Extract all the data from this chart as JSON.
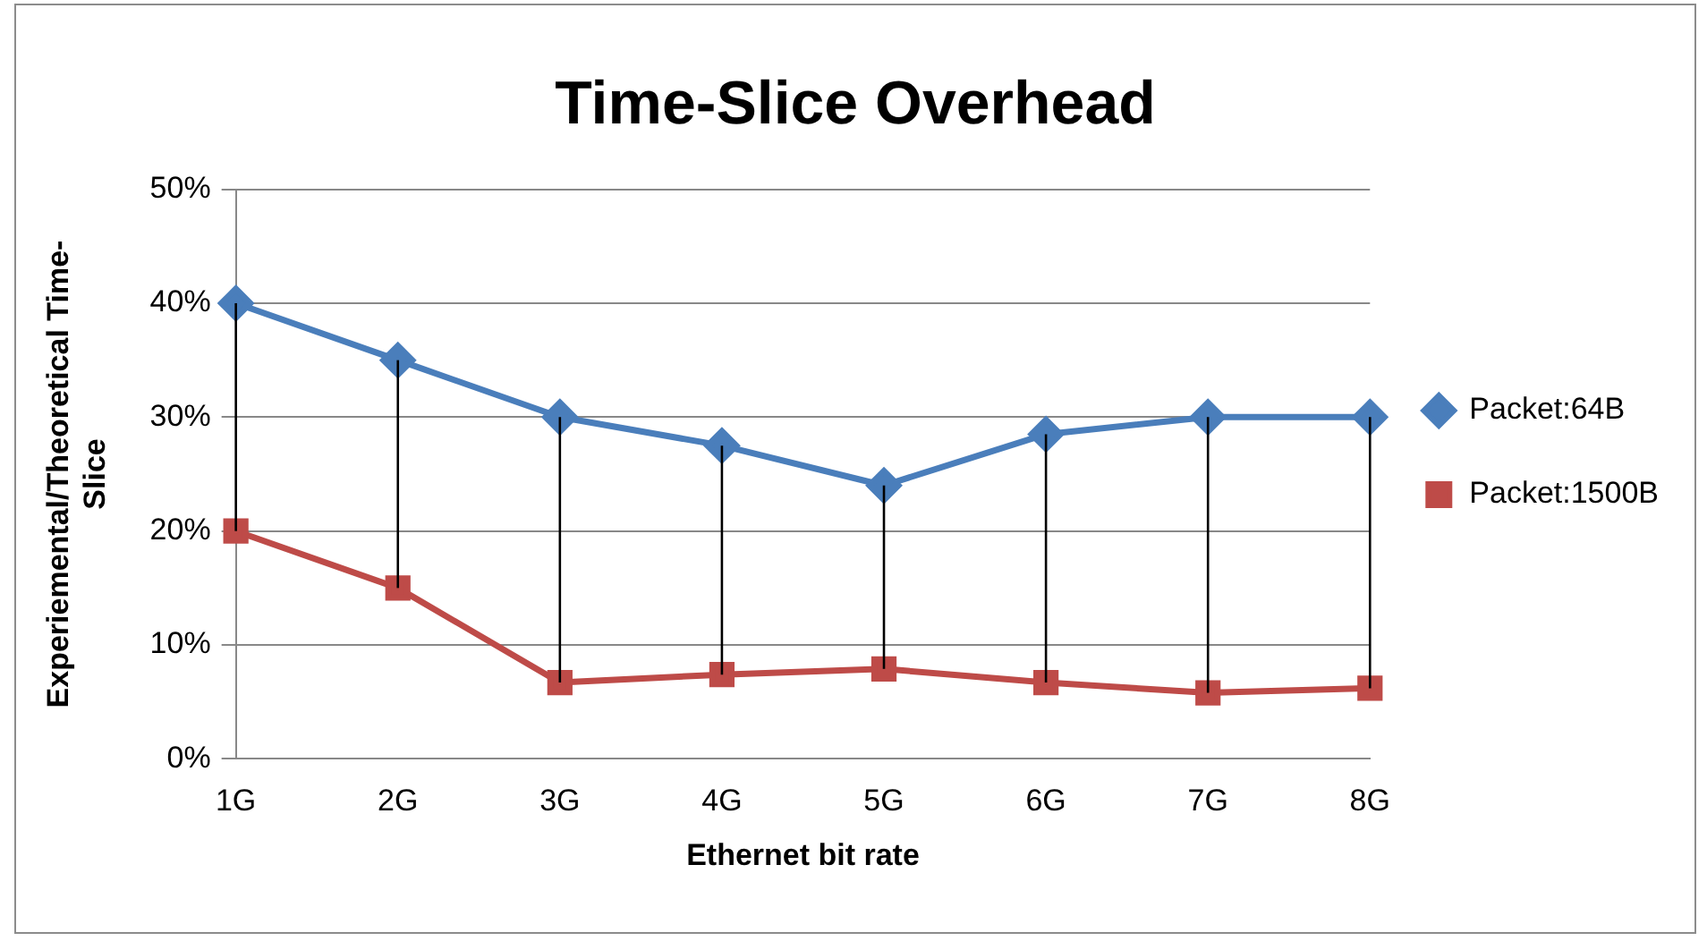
{
  "chart_data": {
    "type": "line",
    "title": "Time-Slice Overhead",
    "xlabel": "Ethernet bit rate",
    "ylabel": "Experiemental/Theoretical Time-Slice",
    "categories": [
      "1G",
      "2G",
      "3G",
      "4G",
      "5G",
      "6G",
      "7G",
      "8G"
    ],
    "series": [
      {
        "name": "Packet:64B",
        "color": "#4a7ebb",
        "marker": "diamond",
        "values": [
          40,
          35,
          30,
          27.5,
          24,
          28.5,
          30,
          30
        ],
        "errors": [
          [
            20,
            40
          ],
          [
            15,
            35
          ],
          [
            6.7,
            30
          ],
          [
            7.4,
            27.5
          ],
          [
            7.9,
            24
          ],
          [
            6.7,
            28.5
          ],
          [
            5.8,
            30
          ],
          [
            6.2,
            30
          ]
        ]
      },
      {
        "name": "Packet:1500B",
        "color": "#be4b48",
        "marker": "square",
        "values": [
          20,
          15,
          6.7,
          7.4,
          7.9,
          6.7,
          5.8,
          6.2
        ]
      }
    ],
    "ylim": [
      0,
      50
    ],
    "yticks": [
      {
        "value": 0,
        "label": "0%"
      },
      {
        "value": 10,
        "label": "10%"
      },
      {
        "value": 20,
        "label": "20%"
      },
      {
        "value": 30,
        "label": "30%"
      },
      {
        "value": 40,
        "label": "40%"
      },
      {
        "value": 50,
        "label": "50%"
      }
    ],
    "grid": "y",
    "legend": "right",
    "line_style": "solid"
  }
}
